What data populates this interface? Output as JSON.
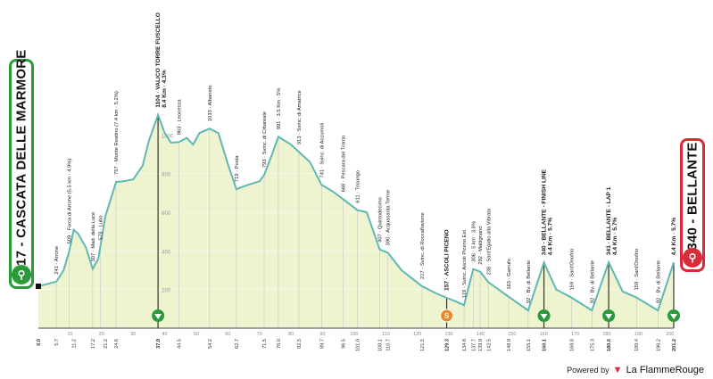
{
  "start_badge": {
    "text": "217 - CASCATA DELLE MARMORE",
    "icon": "cyclist-icon"
  },
  "finish_badge": {
    "text": "340 - BELLANTE",
    "icon": "cyclist-icon"
  },
  "powered_by": {
    "label": "Powered by",
    "brand": "La FlammeRouge"
  },
  "colors": {
    "profile_fill": "#eef3d0",
    "profile_line": "#5fb8b4",
    "start": "#2a9a3a",
    "finish": "#d92b3a",
    "sprint": "#2a9a3a",
    "climb_marker": "#e8892b"
  },
  "chart_data": {
    "type": "area",
    "title": "",
    "xlabel": "",
    "ylabel": "",
    "xlim": [
      0,
      201.2
    ],
    "ylim": [
      0,
      1200
    ],
    "y_ticks": [
      200,
      400,
      600,
      800,
      1000
    ],
    "x_ticks": [
      0,
      10,
      20,
      30,
      40,
      50,
      60,
      70,
      80,
      90,
      100,
      110,
      120,
      130,
      140,
      150,
      160,
      170,
      180,
      190,
      200
    ],
    "profile": [
      [
        0,
        217
      ],
      [
        5.7,
        241
      ],
      [
        8,
        300
      ],
      [
        9.8,
        400
      ],
      [
        11.2,
        509
      ],
      [
        12.5,
        490
      ],
      [
        15,
        420
      ],
      [
        17.2,
        307
      ],
      [
        19,
        360
      ],
      [
        21.2,
        578
      ],
      [
        24.6,
        757
      ],
      [
        27,
        760
      ],
      [
        30,
        770
      ],
      [
        33,
        840
      ],
      [
        35,
        970
      ],
      [
        37.9,
        1104
      ],
      [
        40,
        1010
      ],
      [
        42,
        960
      ],
      [
        44.5,
        963
      ],
      [
        47,
        985
      ],
      [
        49,
        950
      ],
      [
        51,
        1010
      ],
      [
        54.2,
        1033
      ],
      [
        57,
        1010
      ],
      [
        60,
        850
      ],
      [
        62.7,
        719
      ],
      [
        66,
        740
      ],
      [
        70,
        760
      ],
      [
        71.5,
        793
      ],
      [
        74,
        900
      ],
      [
        76,
        991
      ],
      [
        80,
        950
      ],
      [
        82.5,
        913
      ],
      [
        86,
        860
      ],
      [
        89.7,
        741
      ],
      [
        93,
        710
      ],
      [
        96.5,
        668
      ],
      [
        101,
        611
      ],
      [
        104,
        600
      ],
      [
        108.1,
        407
      ],
      [
        110.7,
        390
      ],
      [
        115,
        300
      ],
      [
        121.5,
        217
      ],
      [
        126,
        180
      ],
      [
        129.3,
        157
      ],
      [
        132,
        140
      ],
      [
        134.8,
        119
      ],
      [
        137.7,
        306
      ],
      [
        139.9,
        292
      ],
      [
        142.5,
        238
      ],
      [
        148.9,
        163
      ],
      [
        155.1,
        92
      ],
      [
        160.1,
        340
      ],
      [
        164,
        200
      ],
      [
        168.8,
        159
      ],
      [
        175.3,
        92
      ],
      [
        180.6,
        341
      ],
      [
        185,
        190
      ],
      [
        189.4,
        159
      ],
      [
        196.2,
        92
      ],
      [
        201.2,
        340
      ]
    ],
    "location_labels": [
      {
        "km": 5.7,
        "text": "241 · Arrone"
      },
      {
        "km": 9.8,
        "text": "509 · Forca di Arrone (5.5 km · 4.9%)"
      },
      {
        "km": 17.2,
        "text": "307 · Mad. della Luce"
      },
      {
        "km": 19.6,
        "text": "578 · Lubo"
      },
      {
        "km": 24.6,
        "text": "757 · Monte Reatino (7.4 km · 5.2%)"
      },
      {
        "km": 37.9,
        "text": "1104 · VALICO TORRE FUSCELLO",
        "bold": true
      },
      {
        "km": 37.9,
        "text": "8.4 Km · 4.3%",
        "bold": true,
        "secondary": true
      },
      {
        "km": 44.5,
        "text": "963 · Leonessa"
      },
      {
        "km": 54.2,
        "text": "1033 · Albaneto"
      },
      {
        "km": 62.7,
        "text": "719 · Posta"
      },
      {
        "km": 71.5,
        "text": "793 · Svinc. di Cittareale"
      },
      {
        "km": 76.0,
        "text": "991 · 3.5 Km · 5%"
      },
      {
        "km": 82.5,
        "text": "913 · Svinc. di Amatrice"
      },
      {
        "km": 89.7,
        "text": "741 · Svinc. di Accumoli"
      },
      {
        "km": 96.5,
        "text": "668 · Pescara del Tronto"
      },
      {
        "km": 101.0,
        "text": "611 · Trisungo"
      },
      {
        "km": 108.1,
        "text": "407 · Quintodecimo"
      },
      {
        "km": 110.7,
        "text": "390 · Acquasanta Terme"
      },
      {
        "km": 121.5,
        "text": "217 · Svinc. di Roccafluvione"
      },
      {
        "km": 129.3,
        "text": "157 · ASCOLI PICENO",
        "bold": true
      },
      {
        "km": 134.8,
        "text": "119 · Svinc. Ascoli Piceno Est"
      },
      {
        "km": 137.7,
        "text": "306 · 5 km · 3.8%"
      },
      {
        "km": 139.9,
        "text": "292 · Maltignano"
      },
      {
        "km": 142.5,
        "text": "238 · Sant'Egidio alla Vibrata"
      },
      {
        "km": 148.9,
        "text": "163 · Garrufo"
      },
      {
        "km": 155.1,
        "text": "92 · Bv. di Bellante"
      },
      {
        "km": 160.1,
        "text": "340 · BELLANTE - FINISH LINE",
        "bold": true
      },
      {
        "km": 160.1,
        "text": "4.4 Km · 5.7%",
        "bold": true,
        "secondary": true
      },
      {
        "km": 168.8,
        "text": "159 · Sant'Onofrio"
      },
      {
        "km": 175.3,
        "text": "92 · Bv. di Bellante"
      },
      {
        "km": 180.6,
        "text": "341 · BELLANTE - LAP 1",
        "bold": true
      },
      {
        "km": 180.6,
        "text": "4.4 Km · 5.7%",
        "bold": true,
        "secondary": true
      },
      {
        "km": 189.4,
        "text": "159 · Sant'Onofrio"
      },
      {
        "km": 196.2,
        "text": "92 · Bv. di Bellante"
      },
      {
        "km": 201.2,
        "text": "4.4 Km · 5.7%",
        "bold": true
      }
    ],
    "km_labels": [
      "0.0",
      "5.7",
      "11.2",
      "17.2",
      "21.2",
      "24.6",
      "37.9",
      "44.5",
      "54.2",
      "62.7",
      "71.5",
      "76.0",
      "82.5",
      "89.7",
      "96.5",
      "101.0",
      "108.1",
      "110.7",
      "121.5",
      "129.3",
      "134.8",
      "137.7",
      "139.9",
      "142.5",
      "148.9",
      "155.1",
      "160.1",
      "168.8",
      "175.3",
      "180.6",
      "189.4",
      "196.2",
      "201.2"
    ],
    "markers": [
      {
        "km": 37.9,
        "kind": "climb"
      },
      {
        "km": 129.3,
        "kind": "sprint",
        "label": "S"
      },
      {
        "km": 160.1,
        "kind": "climb"
      },
      {
        "km": 180.6,
        "kind": "climb"
      },
      {
        "km": 201.2,
        "kind": "climb"
      }
    ]
  }
}
